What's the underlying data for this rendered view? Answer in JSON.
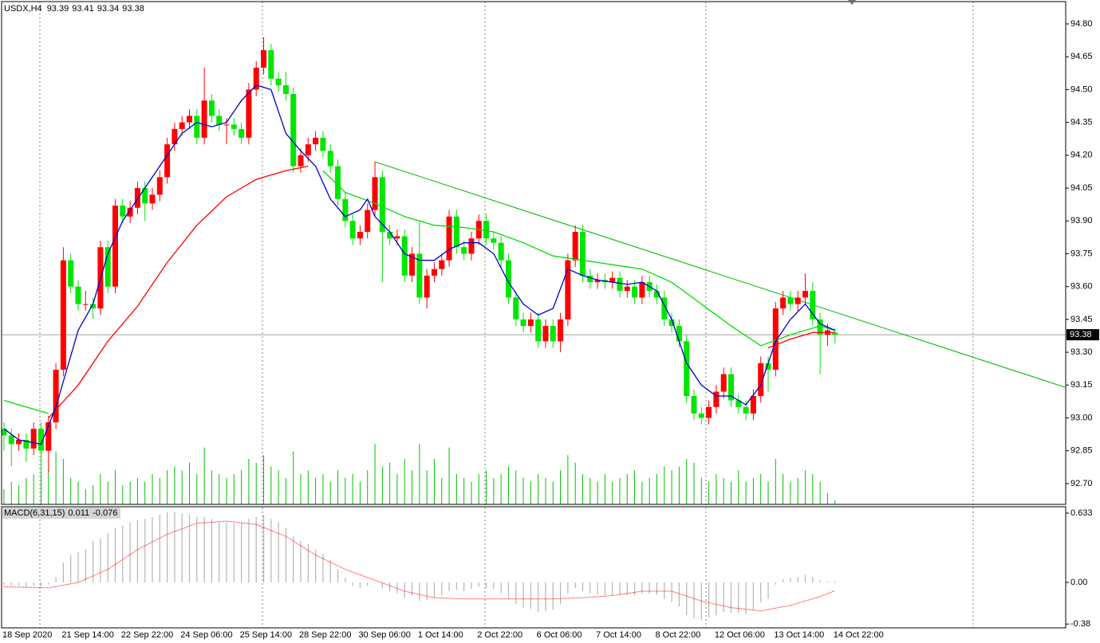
{
  "chart_data": [
    {
      "type": "candlestick",
      "title": "USDX,H4",
      "header_values": [
        93.39,
        93.41,
        93.34,
        93.38
      ],
      "x_labels": [
        "18 Sep 2020",
        "21 Sep 14:00",
        "22 Sep 22:00",
        "24 Sep 06:00",
        "25 Sep 14:00",
        "28 Sep 22:00",
        "30 Sep 06:00",
        "1 Oct 14:00",
        "2 Oct 22:00",
        "6 Oct 06:00",
        "7 Oct 14:00",
        "8 Oct 22:00",
        "12 Oct 06:00",
        "13 Oct 14:00",
        "14 Oct 22:00"
      ],
      "up_color": "#ff0000",
      "down_color": "#00e600",
      "candles": [
        [
          92.95,
          92.98,
          92.85,
          92.92
        ],
        [
          92.92,
          92.95,
          92.78,
          92.88
        ],
        [
          92.88,
          92.93,
          92.85,
          92.9
        ],
        [
          92.9,
          92.93,
          92.8,
          92.86
        ],
        [
          92.86,
          92.98,
          92.83,
          92.95
        ],
        [
          92.95,
          92.98,
          92.75,
          92.85
        ],
        [
          92.85,
          93.01,
          92.75,
          92.98
        ],
        [
          92.98,
          93.25,
          92.95,
          93.22
        ],
        [
          93.22,
          93.78,
          93.19,
          93.72
        ],
        [
          93.72,
          93.75,
          93.57,
          93.6
        ],
        [
          93.6,
          93.63,
          93.49,
          93.52
        ],
        [
          93.52,
          93.58,
          93.49,
          93.52
        ],
        [
          93.52,
          93.55,
          93.45,
          93.5
        ],
        [
          93.5,
          93.81,
          93.47,
          93.78
        ],
        [
          93.78,
          93.81,
          93.57,
          93.6
        ],
        [
          93.6,
          94.0,
          93.57,
          93.97
        ],
        [
          93.97,
          94.0,
          93.89,
          93.92
        ],
        [
          93.92,
          93.99,
          93.89,
          93.96
        ],
        [
          93.96,
          94.08,
          93.93,
          94.05
        ],
        [
          94.05,
          94.08,
          93.9,
          93.98
        ],
        [
          93.98,
          94.05,
          93.95,
          94.02
        ],
        [
          94.02,
          94.13,
          93.99,
          94.1
        ],
        [
          94.1,
          94.28,
          94.07,
          94.25
        ],
        [
          94.25,
          94.35,
          94.22,
          94.32
        ],
        [
          94.32,
          94.38,
          94.29,
          94.35
        ],
        [
          94.35,
          94.41,
          94.32,
          94.38
        ],
        [
          94.38,
          94.41,
          94.25,
          94.28
        ],
        [
          94.28,
          94.6,
          94.25,
          94.45
        ],
        [
          94.45,
          94.48,
          94.35,
          94.38
        ],
        [
          94.38,
          94.41,
          94.31,
          94.34
        ],
        [
          94.34,
          94.37,
          94.25,
          94.34
        ],
        [
          94.34,
          94.37,
          94.29,
          94.32
        ],
        [
          94.32,
          94.35,
          94.25,
          94.28
        ],
        [
          94.28,
          94.53,
          94.25,
          94.5
        ],
        [
          94.5,
          94.63,
          94.47,
          94.6
        ],
        [
          94.6,
          94.74,
          94.57,
          94.68
        ],
        [
          94.68,
          94.71,
          94.52,
          94.55
        ],
        [
          94.55,
          94.58,
          94.49,
          94.52
        ],
        [
          94.52,
          94.58,
          94.45,
          94.48
        ],
        [
          94.48,
          94.51,
          94.12,
          94.15
        ],
        [
          94.15,
          94.23,
          94.12,
          94.2
        ],
        [
          94.2,
          94.28,
          94.17,
          94.25
        ],
        [
          94.25,
          94.31,
          94.22,
          94.28
        ],
        [
          94.28,
          94.31,
          94.19,
          94.22
        ],
        [
          94.22,
          94.25,
          94.12,
          94.15
        ],
        [
          94.15,
          94.18,
          93.97,
          94.0
        ],
        [
          94.0,
          94.03,
          93.87,
          93.9
        ],
        [
          93.9,
          93.93,
          93.79,
          93.82
        ],
        [
          93.82,
          93.88,
          93.79,
          93.85
        ],
        [
          93.85,
          93.98,
          93.82,
          93.95
        ],
        [
          93.95,
          94.17,
          93.92,
          94.1
        ],
        [
          94.1,
          94.13,
          93.62,
          93.85
        ],
        [
          93.85,
          93.88,
          93.79,
          93.82
        ],
        [
          93.82,
          93.86,
          93.79,
          93.83
        ],
        [
          93.83,
          93.86,
          93.62,
          93.65
        ],
        [
          93.65,
          93.78,
          93.62,
          93.75
        ],
        [
          93.75,
          93.9,
          93.52,
          93.55
        ],
        [
          93.55,
          93.68,
          93.5,
          93.65
        ],
        [
          93.65,
          93.71,
          93.62,
          93.68
        ],
        [
          93.68,
          93.75,
          93.65,
          93.72
        ],
        [
          93.72,
          93.95,
          93.69,
          93.92
        ],
        [
          93.92,
          93.95,
          93.75,
          93.78
        ],
        [
          93.78,
          93.81,
          93.72,
          93.75
        ],
        [
          93.75,
          93.85,
          93.72,
          93.82
        ],
        [
          93.82,
          93.93,
          93.79,
          93.9
        ],
        [
          93.9,
          93.93,
          93.79,
          93.82
        ],
        [
          93.82,
          93.85,
          93.77,
          93.8
        ],
        [
          93.8,
          93.83,
          93.69,
          93.72
        ],
        [
          93.72,
          93.75,
          93.52,
          93.55
        ],
        [
          93.55,
          93.58,
          93.42,
          93.45
        ],
        [
          93.45,
          93.48,
          93.39,
          93.42
        ],
        [
          93.42,
          93.48,
          93.39,
          93.45
        ],
        [
          93.45,
          93.48,
          93.32,
          93.35
        ],
        [
          93.35,
          93.45,
          93.32,
          93.42
        ],
        [
          93.42,
          93.45,
          93.32,
          93.35
        ],
        [
          93.35,
          93.48,
          93.3,
          93.45
        ],
        [
          93.45,
          93.75,
          93.42,
          93.72
        ],
        [
          93.72,
          93.88,
          93.69,
          93.85
        ],
        [
          93.85,
          93.88,
          93.62,
          93.65
        ],
        [
          93.65,
          93.68,
          93.59,
          93.62
        ],
        [
          93.62,
          93.66,
          93.59,
          93.63
        ],
        [
          93.63,
          93.66,
          93.59,
          93.62
        ],
        [
          93.62,
          93.67,
          93.59,
          93.64
        ],
        [
          93.64,
          93.67,
          93.55,
          93.58
        ],
        [
          93.58,
          93.63,
          93.55,
          93.6
        ],
        [
          93.6,
          93.63,
          93.52,
          93.55
        ],
        [
          93.55,
          93.65,
          93.52,
          93.62
        ],
        [
          93.62,
          93.65,
          93.55,
          93.58
        ],
        [
          93.58,
          93.61,
          93.52,
          93.55
        ],
        [
          93.55,
          93.58,
          93.42,
          93.45
        ],
        [
          93.45,
          93.48,
          93.39,
          93.42
        ],
        [
          93.42,
          93.45,
          93.32,
          93.35
        ],
        [
          93.35,
          93.38,
          93.07,
          93.1
        ],
        [
          93.1,
          93.13,
          92.99,
          93.02
        ],
        [
          93.02,
          93.05,
          92.97,
          93.0
        ],
        [
          93.0,
          93.08,
          92.97,
          93.05
        ],
        [
          93.05,
          93.15,
          93.02,
          93.12
        ],
        [
          93.12,
          93.23,
          93.09,
          93.2
        ],
        [
          93.2,
          93.23,
          93.05,
          93.08
        ],
        [
          93.08,
          93.11,
          93.02,
          93.05
        ],
        [
          93.05,
          93.08,
          92.99,
          93.02
        ],
        [
          93.02,
          93.13,
          92.99,
          93.1
        ],
        [
          93.1,
          93.28,
          93.07,
          93.25
        ],
        [
          93.25,
          93.28,
          93.12,
          93.22
        ],
        [
          93.22,
          93.53,
          93.19,
          93.5
        ],
        [
          93.5,
          93.58,
          93.47,
          93.55
        ],
        [
          93.55,
          93.58,
          93.49,
          93.52
        ],
        [
          93.52,
          93.58,
          93.49,
          93.55
        ],
        [
          93.55,
          93.66,
          93.52,
          93.58
        ],
        [
          93.58,
          93.62,
          93.42,
          93.45
        ],
        [
          93.45,
          93.48,
          93.2,
          93.38
        ],
        [
          93.38,
          93.43,
          93.33,
          93.4
        ],
        [
          93.39,
          93.41,
          93.34,
          93.38
        ]
      ],
      "series": [
        {
          "color": "#00dd00",
          "x": [
            0,
            3,
            6,
            7,
            43,
            46,
            50,
            54,
            58,
            62,
            66,
            70,
            74,
            78,
            82,
            86,
            90,
            94,
            98,
            102,
            106,
            110,
            112
          ],
          "values": [
            93.08,
            93.05,
            93.02,
            null,
            94.13,
            94.03,
            93.98,
            93.92,
            93.88,
            93.87,
            93.85,
            93.8,
            93.74,
            93.72,
            93.7,
            93.68,
            93.62,
            93.52,
            93.42,
            93.33,
            93.38,
            93.42,
            93.4
          ]
        },
        {
          "color": "#ff0000",
          "x": [
            6,
            10,
            14,
            18,
            22,
            26,
            30,
            34,
            38,
            41,
            42,
            103,
            106,
            109,
            112
          ],
          "values": [
            93.0,
            93.15,
            93.35,
            93.51,
            93.71,
            93.88,
            94.01,
            94.09,
            94.13,
            94.15,
            null,
            93.32,
            93.36,
            93.39,
            93.39
          ]
        },
        {
          "color": "#0000c8",
          "x": [
            0,
            2,
            5,
            7,
            10,
            12,
            14,
            16,
            18,
            20,
            22,
            24,
            26,
            28,
            30,
            32,
            34,
            36,
            37,
            38,
            40,
            42,
            44,
            46,
            48,
            49,
            50,
            52,
            54,
            56,
            58,
            60,
            62,
            64,
            66,
            68,
            70,
            72,
            74,
            76,
            78,
            80,
            82,
            84,
            86,
            88,
            90,
            92,
            94,
            96,
            98,
            100,
            102,
            104,
            106,
            108,
            110,
            112
          ],
          "values": [
            92.95,
            92.9,
            92.88,
            93.05,
            93.4,
            93.52,
            93.75,
            93.9,
            94.0,
            94.1,
            94.2,
            94.3,
            94.35,
            94.33,
            94.35,
            94.45,
            94.52,
            94.5,
            94.4,
            94.3,
            94.22,
            94.15,
            94.0,
            93.92,
            93.95,
            94.0,
            93.92,
            93.85,
            93.75,
            93.72,
            93.72,
            93.77,
            93.8,
            93.8,
            93.75,
            93.62,
            93.52,
            93.47,
            93.5,
            93.68,
            93.65,
            93.63,
            93.62,
            93.61,
            93.62,
            93.58,
            93.45,
            93.25,
            93.15,
            93.1,
            93.1,
            93.06,
            93.15,
            93.35,
            93.45,
            93.52,
            93.43,
            93.4
          ]
        }
      ],
      "trendline": {
        "color": "#00b400",
        "x": [
          50,
          143
        ],
        "values": [
          94.17,
          93.14
        ]
      },
      "volume": [
        20,
        30,
        25,
        35,
        40,
        55,
        45,
        70,
        60,
        35,
        30,
        20,
        25,
        40,
        30,
        45,
        25,
        30,
        35,
        30,
        40,
        35,
        45,
        50,
        45,
        55,
        40,
        75,
        45,
        40,
        35,
        40,
        45,
        60,
        55,
        65,
        50,
        45,
        35,
        70,
        40,
        45,
        35,
        40,
        30,
        45,
        35,
        40,
        30,
        45,
        80,
        50,
        55,
        40,
        60,
        45,
        80,
        45,
        60,
        35,
        75,
        40,
        35,
        30,
        40,
        45,
        35,
        40,
        50,
        45,
        35,
        30,
        40,
        35,
        30,
        45,
        65,
        55,
        40,
        35,
        30,
        40,
        30,
        35,
        40,
        45,
        30,
        35,
        40,
        50,
        45,
        50,
        60,
        55,
        35,
        30,
        40,
        35,
        30,
        45,
        30,
        35,
        40,
        30,
        60,
        40,
        30,
        35,
        45,
        40,
        30,
        15,
        5
      ],
      "volume_color": "#00c000",
      "price_line": 93.38,
      "xlim": [
        -0.32,
        143.1
      ],
      "ylim": [
        92.605,
        94.902
      ],
      "yticks": [
        {
          "value": 94.8,
          "label": "94.80"
        },
        94.65,
        {
          "value": 94.5,
          "label": "94.50"
        },
        94.35,
        {
          "value": 94.2,
          "label": "94.20"
        },
        94.05,
        {
          "value": 93.9,
          "label": "93.90"
        },
        93.75,
        {
          "value": 93.6,
          "label": "93.60"
        },
        93.45,
        {
          "value": 93.3,
          "label": "93.30"
        },
        93.15,
        {
          "value": 93,
          "label": "93.00"
        },
        92.85,
        {
          "value": 92.7,
          "label": "92.70"
        }
      ]
    },
    {
      "type": "macd",
      "title": "MACD(6,31,15)",
      "last_values": [
        0.011,
        -0.076
      ],
      "histogram": [
        -0.02,
        -0.03,
        -0.03,
        -0.04,
        -0.03,
        -0.04,
        -0.02,
        0.05,
        0.18,
        0.25,
        0.28,
        0.3,
        0.38,
        0.4,
        0.45,
        0.5,
        0.52,
        0.55,
        0.57,
        0.58,
        0.6,
        0.62,
        0.64,
        0.64,
        0.63,
        0.62,
        0.6,
        0.6,
        0.58,
        0.55,
        0.55,
        0.54,
        0.55,
        0.58,
        0.6,
        0.62,
        0.58,
        0.55,
        0.5,
        0.42,
        0.38,
        0.35,
        0.3,
        0.26,
        0.2,
        0.12,
        0.04,
        -0.03,
        -0.05,
        -0.03,
        0.0,
        -0.05,
        -0.08,
        -0.1,
        -0.14,
        -0.12,
        -0.17,
        -0.16,
        -0.14,
        -0.12,
        -0.08,
        -0.07,
        -0.08,
        -0.06,
        -0.04,
        -0.05,
        -0.06,
        -0.1,
        -0.15,
        -0.2,
        -0.23,
        -0.24,
        -0.27,
        -0.26,
        -0.25,
        -0.2,
        -0.1,
        -0.05,
        -0.08,
        -0.1,
        -0.11,
        -0.12,
        -0.12,
        -0.11,
        -0.12,
        -0.12,
        -0.1,
        -0.1,
        -0.11,
        -0.15,
        -0.18,
        -0.22,
        -0.3,
        -0.33,
        -0.34,
        -0.32,
        -0.3,
        -0.27,
        -0.28,
        -0.28,
        -0.29,
        -0.25,
        -0.18,
        -0.15,
        -0.02,
        0.03,
        0.04,
        0.05,
        0.07,
        0.05,
        0.02,
        0.01,
        0.011
      ],
      "hist_color": "#b4b4b4",
      "signal": {
        "color": "#ff0000",
        "x": [
          0,
          6,
          10,
          14,
          18,
          22,
          26,
          30,
          34,
          38,
          42,
          46,
          50,
          54,
          58,
          62,
          66,
          70,
          74,
          78,
          82,
          86,
          90,
          94,
          98,
          102,
          106,
          110,
          112
        ],
        "values": [
          -0.04,
          -0.05,
          0.0,
          0.12,
          0.3,
          0.44,
          0.54,
          0.56,
          0.53,
          0.42,
          0.25,
          0.12,
          0.02,
          -0.08,
          -0.14,
          -0.15,
          -0.15,
          -0.15,
          -0.15,
          -0.14,
          -0.12,
          -0.08,
          -0.08,
          -0.17,
          -0.23,
          -0.26,
          -0.21,
          -0.13,
          -0.076
        ]
      },
      "xlim": [
        -0.32,
        143.1
      ],
      "ylim": [
        -0.415,
        0.691
      ],
      "yticks": [
        0.633,
        {
          "value": 0,
          "label": "0.00"
        },
        -0.38
      ]
    }
  ]
}
